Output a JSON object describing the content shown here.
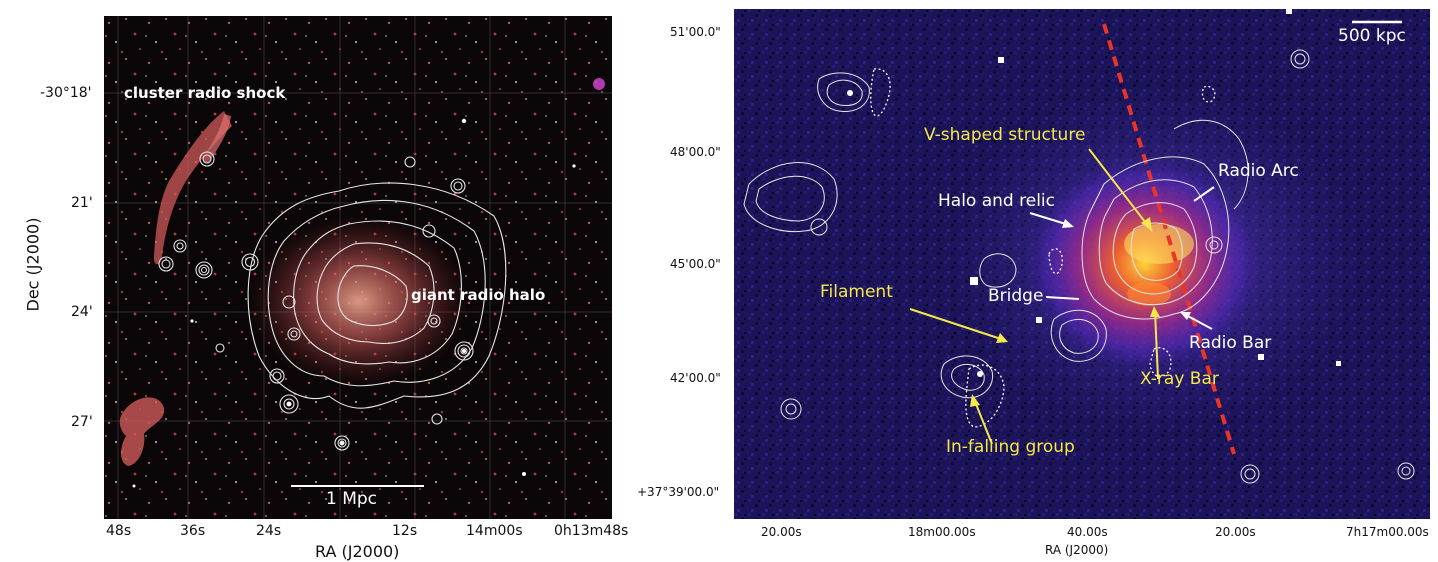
{
  "left_panel": {
    "y_ticks": [
      "-30°18'",
      "21'",
      "24'",
      "27'"
    ],
    "x_ticks": [
      "48s",
      "36s",
      "24s",
      "12s",
      "14m00s",
      "0h13m48s"
    ],
    "x_label": "RA (J2000)",
    "y_label": "Dec (J2000)",
    "annotations": {
      "radio_shock": "cluster radio shock",
      "radio_halo": "giant radio halo"
    },
    "scale_bar": "1 Mpc"
  },
  "right_panel": {
    "y_ticks": [
      "51'00.0\"",
      "48'00.0\"",
      "45'00.0\"",
      "42'00.0\"",
      "+37°39'00.0\""
    ],
    "x_ticks": [
      "20.00s",
      "18m00.00s",
      "40.00s",
      "20.00s",
      "7h17m00.00s"
    ],
    "x_label": "RA (J2000)",
    "annotations": {
      "v_shaped": "V-shaped structure",
      "radio_arc": "Radio Arc",
      "halo_relic": "Halo and relic",
      "bridge": "Bridge",
      "filament": "Filament",
      "radio_bar": "Radio Bar",
      "xray_bar": "X-ray Bar",
      "infalling": "In-falling group"
    },
    "scale_bar": "500 kpc"
  },
  "colors": {
    "annotation_yellow": "#f4e84a",
    "annotation_white": "#ffffff",
    "dashed_line": "#e8352a",
    "contour": "#e6e6e6"
  }
}
